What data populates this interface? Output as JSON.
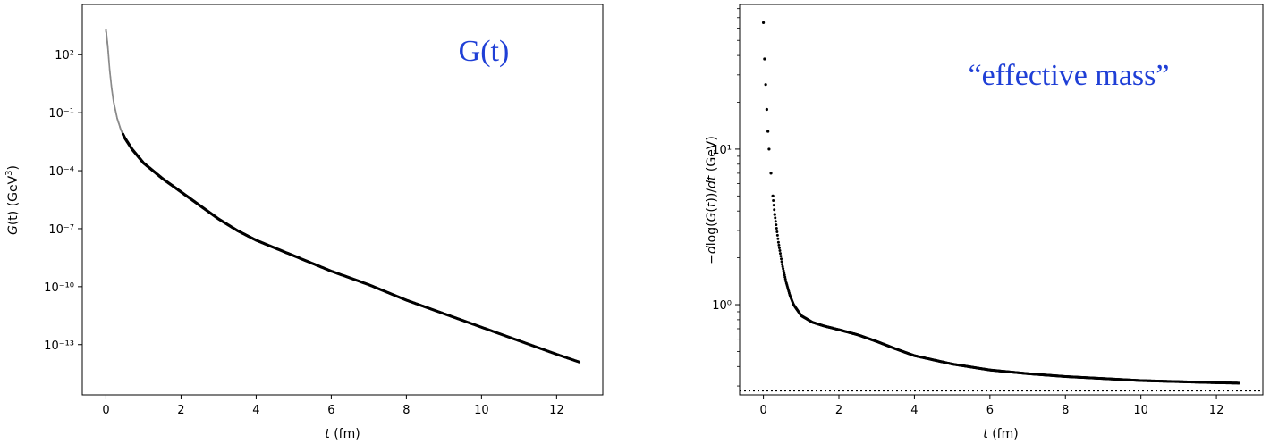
{
  "chart_data": [
    {
      "type": "scatter",
      "title": "",
      "annotation": "G(t)",
      "xlabel": "t (fm)",
      "ylabel": "G(t) (GeV³)",
      "ylabel_parts": {
        "italic": "G",
        "rest": "(t) (GeV",
        "sup": "3",
        "close": ")"
      },
      "xlabel_parts": {
        "italic": "t",
        "rest": " (fm)"
      },
      "yscale": "log",
      "xlim": [
        -0.63,
        13.23
      ],
      "ylim_log10": [
        -15.6,
        4.6
      ],
      "xticks": [
        0,
        2,
        4,
        6,
        8,
        10,
        12
      ],
      "yticks_log10": [
        2,
        -1,
        -4,
        -7,
        -10,
        -13
      ],
      "ytick_labels": [
        "10²",
        "10⁻¹",
        "10⁻⁴",
        "10⁻⁷",
        "10⁻¹⁰",
        "10⁻¹³"
      ],
      "grid": false,
      "marker_color": "#000000",
      "points": [
        {
          "t": 0.0,
          "log10G": 3.3
        },
        {
          "t": 0.05,
          "log10G": 2.4
        },
        {
          "t": 0.1,
          "log10G": 1.2
        },
        {
          "t": 0.15,
          "log10G": 0.3
        },
        {
          "t": 0.2,
          "log10G": -0.4
        },
        {
          "t": 0.3,
          "log10G": -1.3
        },
        {
          "t": 0.4,
          "log10G": -1.9
        },
        {
          "t": 0.5,
          "log10G": -2.3
        },
        {
          "t": 0.7,
          "log10G": -2.9
        },
        {
          "t": 1.0,
          "log10G": -3.6
        },
        {
          "t": 1.5,
          "log10G": -4.4
        },
        {
          "t": 2.0,
          "log10G": -5.1
        },
        {
          "t": 2.5,
          "log10G": -5.8
        },
        {
          "t": 3.0,
          "log10G": -6.5
        },
        {
          "t": 3.5,
          "log10G": -7.1
        },
        {
          "t": 4.0,
          "log10G": -7.6
        },
        {
          "t": 5.0,
          "log10G": -8.4
        },
        {
          "t": 6.0,
          "log10G": -9.2
        },
        {
          "t": 7.0,
          "log10G": -9.9
        },
        {
          "t": 8.0,
          "log10G": -10.7
        },
        {
          "t": 9.0,
          "log10G": -11.4
        },
        {
          "t": 10.0,
          "log10G": -12.1
        },
        {
          "t": 11.0,
          "log10G": -12.8
        },
        {
          "t": 12.0,
          "log10G": -13.5
        },
        {
          "t": 12.6,
          "log10G": -13.9
        }
      ]
    },
    {
      "type": "scatter",
      "title": "",
      "annotation": "“effective mass”",
      "xlabel": "t (fm)",
      "ylabel": "−dlog(G(t))/dt (GeV)",
      "ylabel_parts": {
        "a": "−",
        "b": "d",
        "c": "log(",
        "d": "G",
        "e": "(",
        "f": "t",
        "g": "))/",
        "h": "d",
        "i": "t",
        "j": " (GeV)"
      },
      "xlabel_parts": {
        "italic": "t",
        "rest": " (fm)"
      },
      "yscale": "log",
      "xlim": [
        -0.63,
        13.23
      ],
      "ylim_log10": [
        -0.58,
        1.93
      ],
      "xticks": [
        0,
        2,
        4,
        6,
        8,
        10,
        12
      ],
      "yticks_log10": [
        0,
        1
      ],
      "ytick_labels": [
        "10⁰",
        "10¹"
      ],
      "grid": false,
      "marker_color": "#000000",
      "reference_line": {
        "y": 0.28,
        "style": "dotted",
        "color": "#000000"
      },
      "points": [
        {
          "t": 0.0,
          "y": 65
        },
        {
          "t": 0.03,
          "y": 38
        },
        {
          "t": 0.06,
          "y": 26
        },
        {
          "t": 0.09,
          "y": 18
        },
        {
          "t": 0.12,
          "y": 13
        },
        {
          "t": 0.15,
          "y": 10
        },
        {
          "t": 0.2,
          "y": 7
        },
        {
          "t": 0.25,
          "y": 5
        },
        {
          "t": 0.3,
          "y": 3.8
        },
        {
          "t": 0.4,
          "y": 2.5
        },
        {
          "t": 0.5,
          "y": 1.8
        },
        {
          "t": 0.6,
          "y": 1.4
        },
        {
          "t": 0.7,
          "y": 1.15
        },
        {
          "t": 0.8,
          "y": 1.0
        },
        {
          "t": 1.0,
          "y": 0.85
        },
        {
          "t": 1.3,
          "y": 0.77
        },
        {
          "t": 1.6,
          "y": 0.73
        },
        {
          "t": 2.0,
          "y": 0.69
        },
        {
          "t": 2.5,
          "y": 0.64
        },
        {
          "t": 3.0,
          "y": 0.58
        },
        {
          "t": 3.5,
          "y": 0.52
        },
        {
          "t": 4.0,
          "y": 0.47
        },
        {
          "t": 5.0,
          "y": 0.415
        },
        {
          "t": 6.0,
          "y": 0.38
        },
        {
          "t": 7.0,
          "y": 0.36
        },
        {
          "t": 8.0,
          "y": 0.345
        },
        {
          "t": 9.0,
          "y": 0.335
        },
        {
          "t": 10.0,
          "y": 0.325
        },
        {
          "t": 11.0,
          "y": 0.32
        },
        {
          "t": 12.0,
          "y": 0.315
        },
        {
          "t": 12.6,
          "y": 0.313
        }
      ]
    }
  ]
}
